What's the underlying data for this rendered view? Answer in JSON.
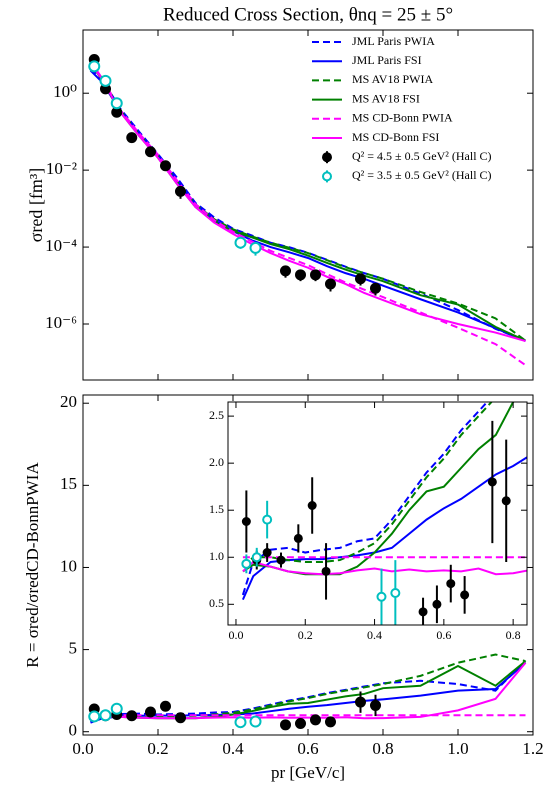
{
  "chart_data": [
    {
      "type": "line",
      "title": "Reduced Cross Section, θnq = 25 ± 5°",
      "ylabel": "σred [fm³]",
      "log_y": true,
      "legend": "upper right",
      "xlim": [
        0,
        1.2
      ],
      "xticks": [
        0,
        0.2,
        0.4,
        0.6,
        0.8,
        1.0,
        1.2
      ],
      "xtick_labels": false,
      "ylim": [
        3.5e-08,
        44
      ],
      "yticks": [
        {
          "value": 1,
          "label": "10⁰"
        },
        {
          "value": 0.01,
          "label": "10⁻²"
        },
        {
          "value": 0.0001,
          "label": "10⁻⁴"
        },
        {
          "value": 1e-06,
          "label": "10⁻⁶"
        }
      ],
      "x": [
        0.02,
        0.05,
        0.1,
        0.15,
        0.2,
        0.25,
        0.3,
        0.35,
        0.4,
        0.45,
        0.5,
        0.55,
        0.6,
        0.65,
        0.7,
        0.75,
        0.8,
        0.9,
        1.0,
        1.1,
        1.18
      ],
      "series": [
        {
          "name": "JML Paris PWIA",
          "color": "#0000ff",
          "dashed": true,
          "values": [
            4.2,
            2.4,
            0.39,
            0.099,
            0.026,
            0.0065,
            0.0014,
            0.00059,
            0.0003,
            0.0002,
            0.00013,
            9.9e-05,
            7.1e-05,
            4.7e-05,
            3.1e-05,
            2.1e-05,
            1.5e-05,
            6.2e-06,
            2.3e-06,
            7.5e-07,
            3.7e-07
          ]
        },
        {
          "name": "JML Paris FSI",
          "color": "#0000ff",
          "dashed": false,
          "values": [
            3.9,
            2.0,
            0.34,
            0.087,
            0.025,
            0.0054,
            0.0013,
            0.00051,
            0.00026,
            0.00015,
            0.0001,
            7.3e-05,
            5.2e-05,
            3.2e-05,
            2.1e-05,
            1.5e-05,
            9.9e-06,
            4.4e-06,
            2e-06,
            7.8e-07,
            3.6e-07
          ]
        },
        {
          "name": "MS AV18 PWIA",
          "color": "#008000",
          "dashed": true,
          "values": [
            6.3,
            2.5,
            0.36,
            0.087,
            0.024,
            0.0052,
            0.0013,
            0.00053,
            0.00029,
            0.00019,
            0.00013,
            9.6e-05,
            7e-05,
            4.6e-05,
            3e-05,
            2.1e-05,
            1.5e-05,
            6.8e-06,
            3.4e-06,
            1.4e-06,
            3.7e-07
          ]
        },
        {
          "name": "MS AV18 FSI",
          "color": "#008000",
          "dashed": false,
          "values": [
            6.0,
            2.3,
            0.32,
            0.077,
            0.021,
            0.0045,
            0.0011,
            0.00045,
            0.00026,
            0.00018,
            0.00012,
            8.8e-05,
            6e-05,
            3.9e-05,
            2.6e-05,
            1.8e-05,
            1.3e-05,
            5.6e-06,
            3.2e-06,
            8.4e-07,
            3.7e-07
          ]
        },
        {
          "name": "MS CD-Bonn PWIA",
          "color": "#ff00ff",
          "dashed": true,
          "values": [
            7,
            2.5,
            0.36,
            0.09,
            0.025,
            0.0055,
            0.0013,
            0.0005,
            0.00025,
            0.00014,
            8e-05,
            5.2e-05,
            3.4e-05,
            2e-05,
            1.2e-05,
            7.8e-06,
            5e-06,
            2e-06,
            8e-07,
            3e-07,
            8.5e-08
          ]
        },
        {
          "name": "MS CD-Bonn FSI",
          "color": "#ff00ff",
          "dashed": false,
          "values": [
            6.0,
            2.4,
            0.32,
            0.077,
            0.021,
            0.0045,
            0.0011,
            0.00043,
            0.00022,
            0.00012,
            7e-05,
            4.4e-05,
            2.9e-05,
            1.7e-05,
            1.1e-05,
            6.4e-06,
            4.2e-06,
            1.8e-06,
            1e-06,
            6e-07,
            3.6e-07
          ]
        },
        {
          "name": "Q² = 4.5 ± 0.5 GeV² (Hall C)",
          "color": "#000000",
          "marker": "filled",
          "x": [
            0.03,
            0.06,
            0.09,
            0.13,
            0.18,
            0.22,
            0.26,
            0.54,
            0.58,
            0.62,
            0.66,
            0.74,
            0.78
          ],
          "values": [
            7.5,
            1.3,
            0.32,
            0.07,
            0.03,
            0.013,
            0.0028,
            2.4e-05,
            1.9e-05,
            1.9e-05,
            1.1e-05,
            1.5e-05,
            8.5e-06
          ],
          "errors": [
            0.8,
            0.1,
            0.03,
            0.006,
            0.003,
            0.002,
            0.001,
            8e-06,
            6e-06,
            6e-06,
            4e-06,
            5e-06,
            3e-06
          ]
        },
        {
          "name": "Q² = 3.5 ± 0.5 GeV² (Hall C)",
          "color": "#00bfbf",
          "marker": "open",
          "x": [
            0.03,
            0.06,
            0.09,
            0.42,
            0.46
          ],
          "values": [
            5.0,
            2.1,
            0.55,
            0.00013,
            9.5e-05
          ],
          "errors": [
            0.5,
            0.2,
            0.06,
            4e-05,
            3.5e-05
          ]
        }
      ]
    },
    {
      "type": "line",
      "xlabel": "pr [GeV/c]",
      "ylabel": "R = σred/σredCD-BonnPWIA",
      "log_y": false,
      "xlim": [
        0,
        1.2
      ],
      "xticks": [
        {
          "value": 0,
          "label": "0.0"
        },
        0.2,
        0.4,
        0.6,
        0.8,
        {
          "value": 1.0,
          "label": "1.0"
        },
        1.2
      ],
      "ylim": [
        -0.2,
        20.5
      ],
      "yticks": [
        0,
        5,
        10,
        15,
        20
      ],
      "inset": {
        "xlim": [
          -0.023,
          0.84
        ],
        "ylim": [
          0.28,
          2.65
        ],
        "xticks": [
          {
            "value": 0,
            "label": "0.0"
          },
          0.2,
          0.4,
          0.6,
          0.8
        ],
        "yticks": [
          0.5,
          {
            "value": 1.0,
            "label": "1.0"
          },
          1.5,
          {
            "value": 2.0,
            "label": "2.0"
          },
          2.5
        ]
      },
      "x": [
        0.02,
        0.05,
        0.1,
        0.15,
        0.2,
        0.25,
        0.3,
        0.35,
        0.4,
        0.45,
        0.5,
        0.55,
        0.6,
        0.65,
        0.7,
        0.75,
        0.8,
        0.9,
        1.0,
        1.1,
        1.18
      ],
      "series": [
        {
          "color": "#0000ff",
          "dashed": true,
          "values": [
            0.6,
            0.95,
            1.08,
            1.1,
            1.05,
            1.08,
            1.1,
            1.17,
            1.2,
            1.4,
            1.65,
            1.9,
            2.1,
            2.35,
            2.55,
            2.75,
            2.95,
            3.1,
            2.9,
            2.5,
            4.3
          ]
        },
        {
          "color": "#0000ff",
          "dashed": false,
          "values": [
            0.55,
            0.8,
            0.95,
            0.97,
            0.98,
            0.98,
            1.0,
            1.02,
            1.05,
            1.1,
            1.25,
            1.4,
            1.52,
            1.62,
            1.75,
            1.88,
            1.97,
            2.2,
            2.5,
            2.6,
            4.2
          ]
        },
        {
          "color": "#008000",
          "dashed": true,
          "values": [
            0.9,
            1.0,
            1.0,
            0.97,
            0.95,
            0.95,
            0.97,
            1.05,
            1.15,
            1.35,
            1.6,
            1.85,
            2.05,
            2.3,
            2.5,
            2.7,
            2.9,
            3.4,
            4.2,
            4.7,
            4.3
          ]
        },
        {
          "color": "#008000",
          "dashed": false,
          "values": [
            0.85,
            0.92,
            0.9,
            0.85,
            0.82,
            0.82,
            0.82,
            0.9,
            1.05,
            1.25,
            1.5,
            1.7,
            1.75,
            1.95,
            2.15,
            2.3,
            2.65,
            2.8,
            4.0,
            2.8,
            4.3
          ]
        },
        {
          "color": "#ff00ff",
          "dashed": true,
          "values": [
            1,
            1,
            1,
            1,
            1,
            1,
            1,
            1,
            1,
            1,
            1,
            1,
            1,
            1,
            1,
            1,
            1,
            1,
            1,
            1,
            1
          ]
        },
        {
          "color": "#ff00ff",
          "dashed": false,
          "values": [
            0.85,
            0.95,
            0.9,
            0.85,
            0.83,
            0.82,
            0.83,
            0.86,
            0.88,
            0.85,
            0.87,
            0.85,
            0.86,
            0.85,
            0.88,
            0.82,
            0.83,
            0.9,
            1.3,
            2.0,
            4.2
          ]
        },
        {
          "color": "#000000",
          "marker": "filled",
          "x": [
            0.03,
            0.06,
            0.09,
            0.13,
            0.18,
            0.22,
            0.26,
            0.54,
            0.58,
            0.62,
            0.66,
            0.74,
            0.78
          ],
          "values": [
            1.38,
            0.97,
            1.05,
            0.97,
            1.2,
            1.55,
            0.85,
            0.42,
            0.5,
            0.72,
            0.6,
            1.8,
            1.6
          ],
          "errors": [
            0.33,
            0.1,
            0.1,
            0.08,
            0.15,
            0.3,
            0.3,
            0.15,
            0.2,
            0.2,
            0.2,
            0.65,
            0.65
          ]
        },
        {
          "color": "#00bfbf",
          "marker": "open",
          "x": [
            0.03,
            0.06,
            0.09,
            0.42,
            0.46
          ],
          "values": [
            0.93,
            1.0,
            1.4,
            0.58,
            0.62
          ],
          "errors": [
            0.1,
            0.1,
            0.2,
            0.3,
            0.35
          ]
        }
      ]
    }
  ]
}
